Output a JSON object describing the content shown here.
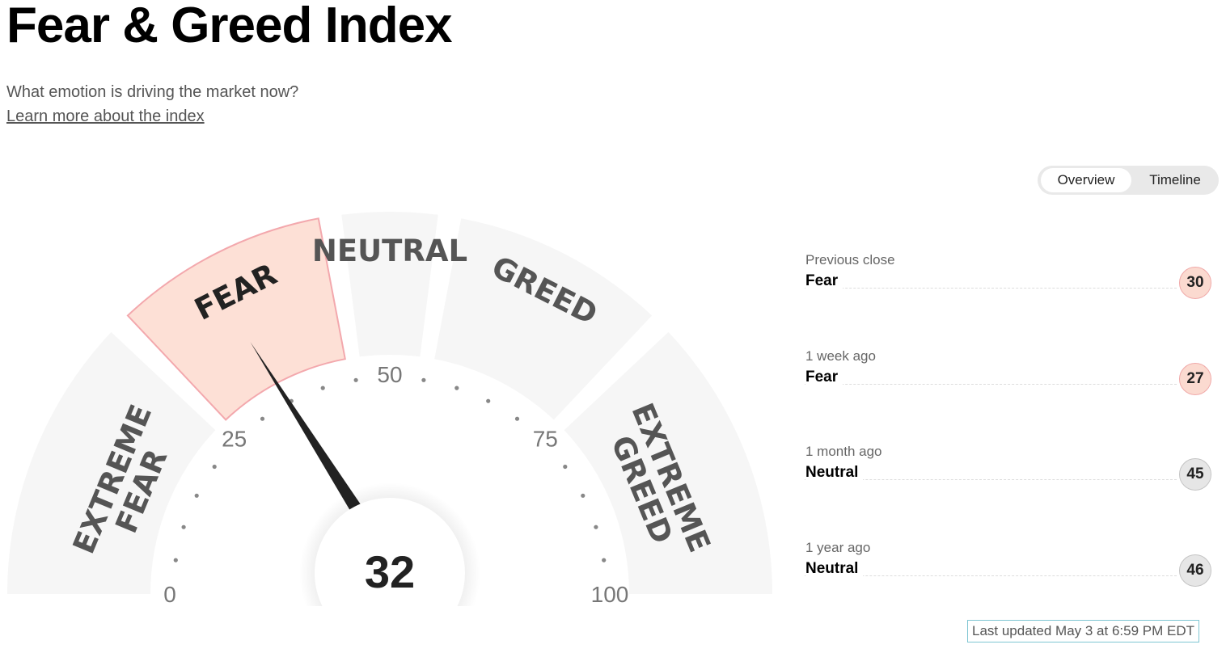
{
  "header": {
    "title": "Fear & Greed Index",
    "subtitle": "What emotion is driving the market now?",
    "learn_more": "Learn more about the index"
  },
  "view_toggle": {
    "options": [
      "Overview",
      "Timeline"
    ],
    "selected": "Overview"
  },
  "gauge": {
    "score": "32",
    "score_value": 32,
    "current_segment": "FEAR",
    "segments": [
      {
        "line1": "EXTREME",
        "line2": "FEAR",
        "range": [
          0,
          25
        ]
      },
      {
        "line1": "FEAR",
        "range": [
          25,
          45
        ]
      },
      {
        "line1": "NEUTRAL",
        "range": [
          45,
          55
        ]
      },
      {
        "line1": "GREED",
        "range": [
          55,
          75
        ]
      },
      {
        "line1": "EXTREME",
        "line2": "GREED",
        "range": [
          75,
          100
        ]
      }
    ],
    "scale_labels": [
      "0",
      "25",
      "50",
      "75",
      "100"
    ],
    "colors": {
      "segment": "#f6f6f6",
      "active_segment": "#fde0d6",
      "active_border": "#f3a8ad",
      "needle": "#222222"
    }
  },
  "history": [
    {
      "label": "Previous close",
      "sentiment": "Fear",
      "value": "30"
    },
    {
      "label": "1 week ago",
      "sentiment": "Fear",
      "value": "27"
    },
    {
      "label": "1 month ago",
      "sentiment": "Neutral",
      "value": "45"
    },
    {
      "label": "1 year ago",
      "sentiment": "Neutral",
      "value": "46"
    }
  ],
  "footer": {
    "last_updated": "Last updated May 3 at 6:59 PM EDT"
  }
}
